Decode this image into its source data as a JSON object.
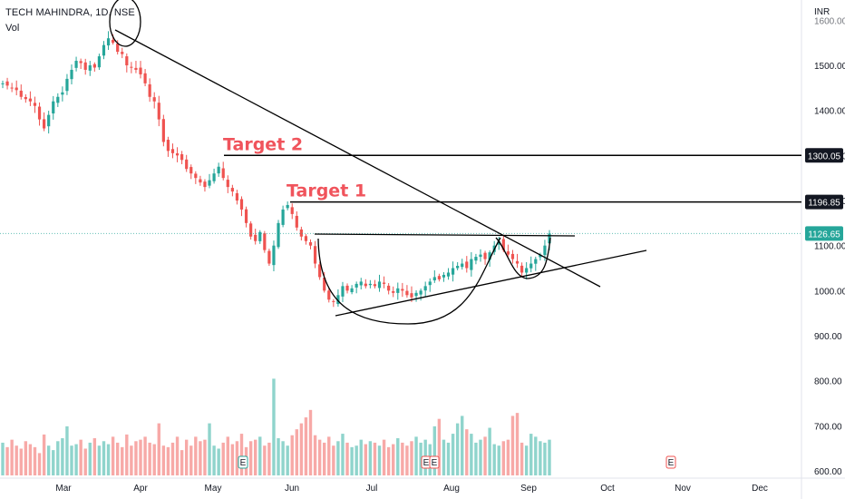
{
  "header": {
    "symbol": "TECH MAHINDRA, 1D, NSE",
    "volume_label": "Vol"
  },
  "currency": "INR",
  "colors": {
    "up": "#26a69a",
    "down": "#ef5350",
    "up_vol": "#8fd4cc",
    "down_vol": "#f7a9a7",
    "annotation": "#000000",
    "target_text": "#f0545c",
    "last_price_line": "#26a69a"
  },
  "chart_data": {
    "type": "candlestick",
    "y_axis": {
      "ticks": [
        1500,
        1400,
        1300,
        1200,
        1100,
        1000,
        900,
        800,
        700,
        600
      ],
      "tick_labels": [
        "1500.00",
        "1400.00",
        "1300.00",
        "1200.00",
        "1100.00",
        "1000.00",
        "900.00",
        "800.00",
        "700.00",
        "600.00"
      ],
      "visible_top_label": "1600.00",
      "range": [
        595,
        1605
      ]
    },
    "x_axis": {
      "labels": [
        "Mar",
        "Apr",
        "May",
        "Jun",
        "Jul",
        "Aug",
        "Sep",
        "Oct",
        "Nov",
        "Dec"
      ]
    },
    "price_tags": [
      {
        "label": "1300.05",
        "value": 1300.05,
        "style": "dark"
      },
      {
        "label": "1196.85",
        "value": 1196.85,
        "style": "dark"
      },
      {
        "label": "1126.65",
        "value": 1126.65,
        "style": "last"
      }
    ],
    "annotations": [
      {
        "text": "Target 2",
        "value": 1300.05
      },
      {
        "text": "Target 1",
        "value": 1196.85
      }
    ],
    "earnings_markers": [
      "E",
      "E",
      "E",
      "E"
    ],
    "close_series": [
      1460,
      1455,
      1450,
      1445,
      1430,
      1425,
      1420,
      1410,
      1380,
      1360,
      1390,
      1420,
      1430,
      1440,
      1470,
      1490,
      1510,
      1505,
      1490,
      1500,
      1495,
      1520,
      1545,
      1560,
      1550,
      1530,
      1525,
      1500,
      1495,
      1490,
      1480,
      1460,
      1430,
      1420,
      1380,
      1330,
      1310,
      1305,
      1300,
      1290,
      1270,
      1260,
      1250,
      1240,
      1230,
      1245,
      1260,
      1275,
      1250,
      1230,
      1220,
      1200,
      1180,
      1150,
      1120,
      1110,
      1130,
      1090,
      1060,
      1100,
      1150,
      1180,
      1190,
      1170,
      1140,
      1120,
      1110,
      1100,
      1060,
      1030,
      1000,
      980,
      975,
      990,
      1010,
      1000,
      1005,
      1015,
      1020,
      1010,
      1015,
      1010,
      1020,
      1015,
      1000,
      995,
      1005,
      1000,
      990,
      985,
      995,
      1000,
      1010,
      1020,
      1030,
      1025,
      1035,
      1040,
      1050,
      1055,
      1060,
      1050,
      1070,
      1075,
      1080,
      1070,
      1085,
      1100,
      1110,
      1090,
      1080,
      1070,
      1060,
      1040,
      1050,
      1060,
      1070,
      1080,
      1100,
      1126.65
    ],
    "volume_series": [
      44,
      38,
      48,
      40,
      36,
      46,
      42,
      38,
      30,
      55,
      40,
      34,
      46,
      50,
      66,
      40,
      42,
      48,
      36,
      44,
      50,
      40,
      46,
      42,
      52,
      44,
      38,
      55,
      40,
      46,
      48,
      52,
      44,
      42,
      70,
      40,
      38,
      44,
      52,
      34,
      48,
      40,
      52,
      46,
      48,
      70,
      40,
      36,
      44,
      52,
      42,
      46,
      56,
      38,
      46,
      48,
      52,
      40,
      44,
      130,
      50,
      46,
      40,
      54,
      62,
      70,
      78,
      88,
      54,
      48,
      44,
      52,
      40,
      46,
      56,
      44,
      38,
      40,
      48,
      42,
      46,
      44,
      40,
      48,
      38,
      42,
      50,
      44,
      40,
      46,
      52,
      44,
      48,
      42,
      66,
      76,
      48,
      44,
      56,
      70,
      80,
      62,
      56,
      44,
      48,
      52,
      64,
      42,
      40,
      46,
      48,
      80,
      84,
      44,
      40,
      56,
      52,
      46,
      44,
      48
    ]
  }
}
